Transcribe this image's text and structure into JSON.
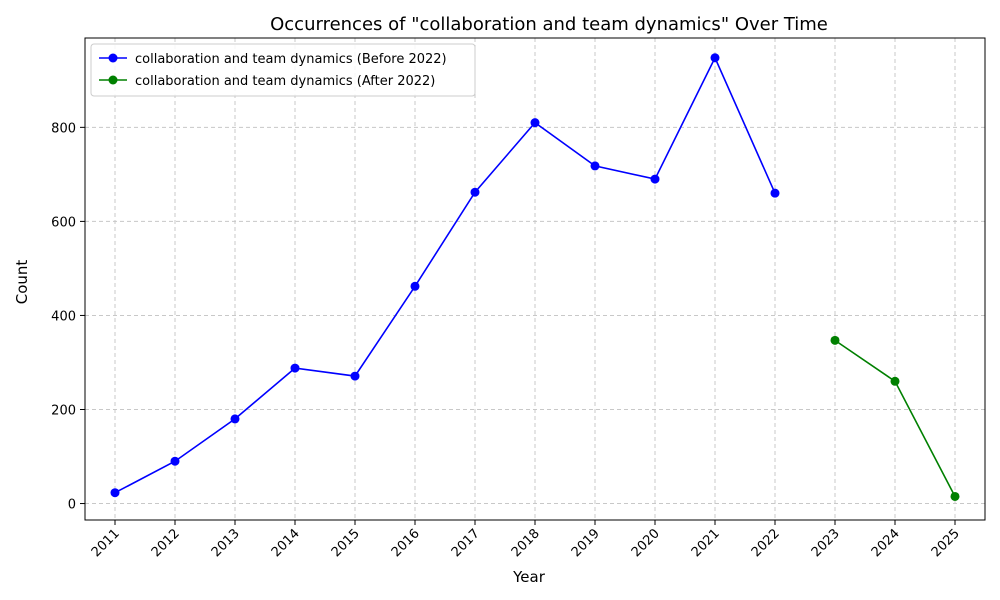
{
  "chart_data": {
    "type": "line",
    "title": "Occurrences of \"collaboration and team dynamics\" Over Time",
    "xlabel": "Year",
    "ylabel": "Count",
    "categories": [
      "2011",
      "2012",
      "2013",
      "2014",
      "2015",
      "2016",
      "2017",
      "2018",
      "2019",
      "2020",
      "2021",
      "2022",
      "2023",
      "2024",
      "2025"
    ],
    "yticks": [
      0,
      200,
      400,
      600,
      800
    ],
    "ylim": [
      -35,
      990
    ],
    "grid": true,
    "legend_position": "top-left",
    "series": [
      {
        "name": "collaboration and team dynamics (Before 2022)",
        "color": "#0000ff",
        "marker": "circle",
        "points": [
          {
            "x": "2011",
            "y": 23
          },
          {
            "x": "2012",
            "y": 90
          },
          {
            "x": "2013",
            "y": 180
          },
          {
            "x": "2014",
            "y": 288
          },
          {
            "x": "2015",
            "y": 271
          },
          {
            "x": "2016",
            "y": 462
          },
          {
            "x": "2017",
            "y": 662
          },
          {
            "x": "2018",
            "y": 810
          },
          {
            "x": "2019",
            "y": 718
          },
          {
            "x": "2020",
            "y": 690
          },
          {
            "x": "2021",
            "y": 948
          },
          {
            "x": "2022",
            "y": 660
          }
        ]
      },
      {
        "name": "collaboration and team dynamics (After 2022)",
        "color": "#008000",
        "marker": "circle",
        "points": [
          {
            "x": "2023",
            "y": 347
          },
          {
            "x": "2024",
            "y": 260
          },
          {
            "x": "2025",
            "y": 15
          }
        ]
      }
    ]
  }
}
